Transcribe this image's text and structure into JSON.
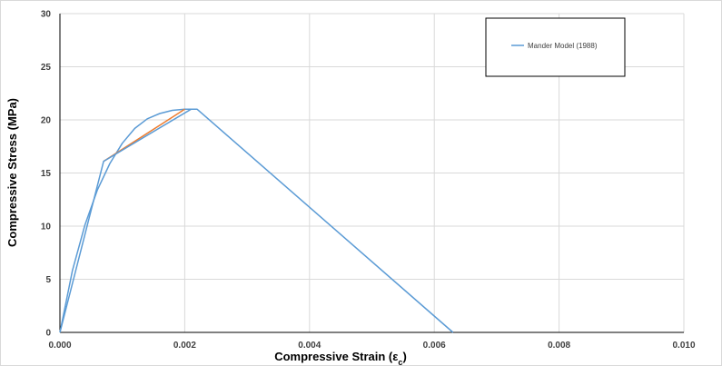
{
  "chart_data": {
    "type": "line",
    "xlabel": "Compressive Strain (εc)",
    "xlabel_main": "Compressive Strain (ε",
    "xlabel_sub": "c",
    "xlabel_close": ")",
    "ylabel": "Compressive Stress (MPa)",
    "xlim": [
      0,
      0.01
    ],
    "ylim": [
      0,
      30
    ],
    "x_ticks": [
      0,
      0.002,
      0.004,
      0.006,
      0.008,
      0.01
    ],
    "x_tick_labels": [
      "0.000",
      "0.002",
      "0.004",
      "0.006",
      "0.008",
      "0.010"
    ],
    "y_ticks": [
      0,
      5,
      10,
      15,
      20,
      25,
      30
    ],
    "y_tick_labels": [
      "0",
      "5",
      "10",
      "15",
      "20",
      "25",
      "30"
    ],
    "grid": true,
    "legend_position": "top-right",
    "series": [
      {
        "name": "Mander Model (1988)",
        "color": "#5b9bd5",
        "x": [
          0,
          0.0002,
          0.0004,
          0.0006,
          0.0008,
          0.001,
          0.0012,
          0.0014,
          0.0016,
          0.0018,
          0.002,
          0.0022,
          0.0063
        ],
        "y": [
          0,
          5.8,
          10.1,
          13.4,
          15.9,
          17.8,
          19.2,
          20.1,
          20.6,
          20.9,
          21.0,
          21.0,
          0
        ]
      },
      {
        "color": "#ed7d31",
        "x": [
          0.0007,
          0.002
        ],
        "y": [
          16.1,
          21.0
        ]
      },
      {
        "color": "#5b9bd5",
        "x": [
          0,
          0.0007,
          0.0021
        ],
        "y": [
          0,
          16.1,
          21.0
        ]
      }
    ]
  }
}
